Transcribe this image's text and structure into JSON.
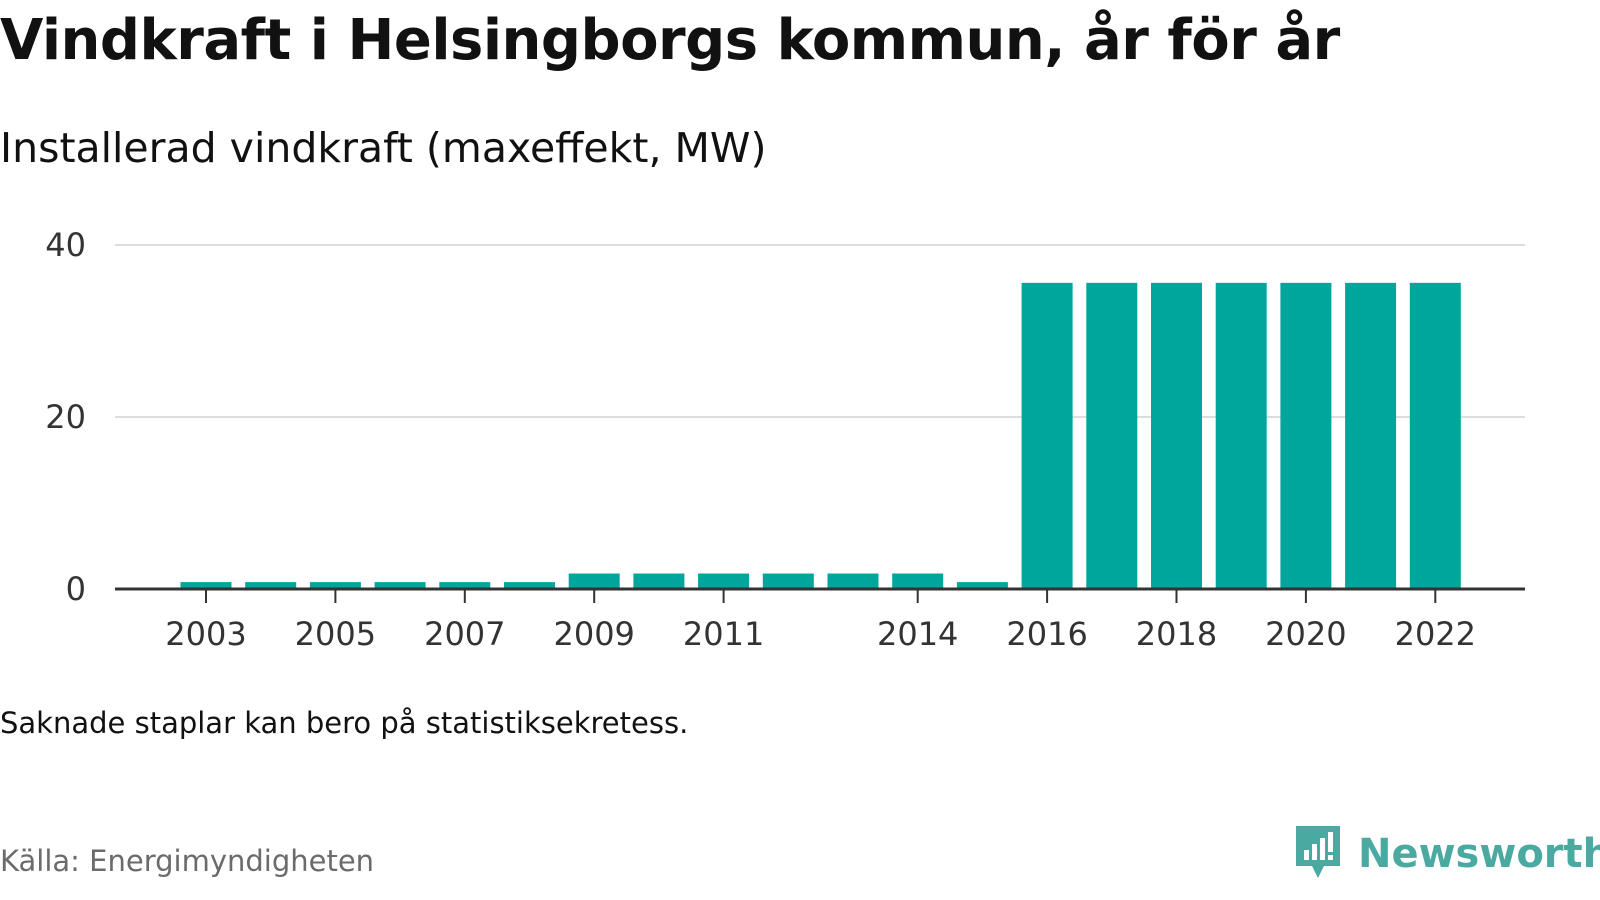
{
  "title": "Vindkraft i Helsingborgs kommun, år för år",
  "subtitle": "Installerad vindkraft (maxeffekt, MW)",
  "note": "Saknade staplar kan bero på statistiksekretess.",
  "source": "Källa: Energimyndigheten",
  "brand": {
    "name": "Newsworthy",
    "icon": "newsworthy-logo-icon"
  },
  "colors": {
    "bar": "#00a69c",
    "brand": "#4aa9a0",
    "grid": "#dddddd",
    "axis": "#333333"
  },
  "chart_data": {
    "type": "bar",
    "categories": [
      "2003",
      "2004",
      "2005",
      "2006",
      "2007",
      "2008",
      "2009",
      "2010",
      "2011",
      "2012",
      "2013",
      "2014",
      "2015",
      "2016",
      "2017",
      "2018",
      "2019",
      "2020",
      "2021",
      "2022"
    ],
    "values": [
      0.8,
      0.8,
      0.8,
      0.8,
      0.8,
      0.8,
      1.8,
      1.8,
      1.8,
      1.8,
      1.8,
      1.8,
      0.8,
      35.6,
      35.6,
      35.6,
      35.6,
      35.6,
      35.6,
      35.6
    ],
    "x_tick_labels": [
      "2003",
      "2005",
      "2007",
      "2009",
      "2011",
      "2014",
      "2016",
      "2018",
      "2020",
      "2022"
    ],
    "y_ticks": [
      0,
      20,
      40
    ],
    "ylim": [
      0,
      40
    ],
    "xlabel": "",
    "ylabel": "",
    "grid": true
  }
}
